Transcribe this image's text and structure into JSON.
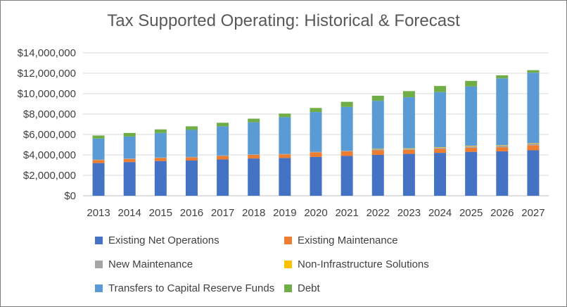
{
  "chart_data": {
    "type": "bar",
    "stacked": true,
    "title": "Tax Supported Operating: Historical & Forecast",
    "xlabel": "",
    "ylabel": "",
    "ylim": [
      0,
      14000000
    ],
    "yticks": [
      0,
      2000000,
      4000000,
      6000000,
      8000000,
      10000000,
      12000000,
      14000000
    ],
    "ytick_labels": [
      "$0",
      "$2,000,000",
      "$4,000,000",
      "$6,000,000",
      "$8,000,000",
      "$10,000,000",
      "$12,000,000",
      "$14,000,000"
    ],
    "grid": true,
    "legend_position": "bottom",
    "categories": [
      "2013",
      "2014",
      "2015",
      "2016",
      "2017",
      "2018",
      "2019",
      "2020",
      "2021",
      "2022",
      "2023",
      "2024",
      "2025",
      "2026",
      "2027"
    ],
    "series": [
      {
        "name": "Existing Net Operations",
        "color": "#4472C4",
        "values": [
          3200000,
          3300000,
          3400000,
          3450000,
          3550000,
          3650000,
          3700000,
          3800000,
          3900000,
          4000000,
          4100000,
          4200000,
          4300000,
          4350000,
          4450000
        ]
      },
      {
        "name": "Existing Maintenance",
        "color": "#ED7D31",
        "values": [
          300000,
          300000,
          300000,
          300000,
          350000,
          350000,
          350000,
          450000,
          450000,
          450000,
          400000,
          400000,
          400000,
          400000,
          500000
        ]
      },
      {
        "name": "New Maintenance",
        "color": "#A5A5A5",
        "values": [
          50000,
          50000,
          50000,
          50000,
          50000,
          50000,
          50000,
          50000,
          50000,
          100000,
          100000,
          100000,
          150000,
          150000,
          150000
        ]
      },
      {
        "name": "Non-Infrastructure Solutions",
        "color": "#FFC000",
        "values": [
          0,
          0,
          0,
          0,
          0,
          0,
          0,
          0,
          0,
          50000,
          50000,
          50000,
          50000,
          50000,
          50000
        ]
      },
      {
        "name": "Transfers to Capital Reserve Funds",
        "color": "#5B9BD5",
        "values": [
          2050000,
          2150000,
          2400000,
          2650000,
          2850000,
          3150000,
          3600000,
          3900000,
          4300000,
          4700000,
          5000000,
          5400000,
          5800000,
          6550000,
          6900000
        ]
      },
      {
        "name": "Debt",
        "color": "#70AD47",
        "values": [
          300000,
          350000,
          350000,
          350000,
          350000,
          350000,
          350000,
          400000,
          500000,
          500000,
          600000,
          600000,
          550000,
          300000,
          250000
        ]
      }
    ]
  }
}
